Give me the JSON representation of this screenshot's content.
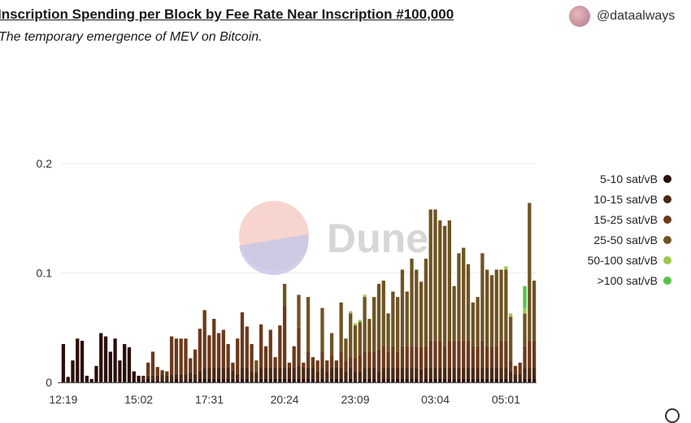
{
  "header": {
    "title": "Inscription Spending per Block by Fee Rate Near Inscription #100,000",
    "subtitle": "The temporary emergence of MEV on Bitcoin.",
    "handle": "@dataalways",
    "watermark": "Dune"
  },
  "chart_data": {
    "type": "bar",
    "stacked": true,
    "grid": "horizontal",
    "legend_position": "right",
    "ylim": [
      0,
      0.29
    ],
    "yticks": [
      0,
      0.1,
      0.2
    ],
    "ytick_labels": [
      "0",
      "0.1",
      "0.2"
    ],
    "xticks": [
      {
        "label": "12:19",
        "index": 0
      },
      {
        "label": "15:02",
        "index": 16
      },
      {
        "label": "17:31",
        "index": 31
      },
      {
        "label": "20:24",
        "index": 47
      },
      {
        "label": "23:09",
        "index": 62
      },
      {
        "label": "03:04",
        "index": 79
      },
      {
        "label": "05:01",
        "index": 94
      }
    ],
    "series": [
      {
        "name": "5-10 sat/vB",
        "color": "#2a0f0a"
      },
      {
        "name": "10-15 sat/vB",
        "color": "#4a2812"
      },
      {
        "name": "15-25 sat/vB",
        "color": "#6b3a1c"
      },
      {
        "name": "25-50 sat/vB",
        "color": "#6e5423"
      },
      {
        "name": "50-100 sat/vB",
        "color": "#9ec94a"
      },
      {
        "name": ">100 sat/vB",
        "color": "#58c04a"
      }
    ],
    "bars": [
      [
        0.035,
        0,
        0,
        0,
        0,
        0
      ],
      [
        0.005,
        0,
        0,
        0,
        0,
        0
      ],
      [
        0.02,
        0,
        0,
        0,
        0,
        0
      ],
      [
        0.04,
        0,
        0,
        0,
        0,
        0
      ],
      [
        0.038,
        0,
        0,
        0,
        0,
        0
      ],
      [
        0.006,
        0,
        0,
        0,
        0,
        0
      ],
      [
        0.003,
        0,
        0,
        0,
        0,
        0
      ],
      [
        0.015,
        0,
        0,
        0,
        0,
        0
      ],
      [
        0.045,
        0,
        0,
        0,
        0,
        0
      ],
      [
        0.042,
        0,
        0,
        0,
        0,
        0
      ],
      [
        0.028,
        0,
        0,
        0,
        0,
        0
      ],
      [
        0.04,
        0,
        0,
        0,
        0,
        0
      ],
      [
        0.02,
        0,
        0,
        0,
        0,
        0
      ],
      [
        0.035,
        0,
        0,
        0,
        0,
        0
      ],
      [
        0.032,
        0,
        0,
        0,
        0,
        0
      ],
      [
        0.01,
        0,
        0,
        0,
        0,
        0
      ],
      [
        0.006,
        0,
        0,
        0,
        0,
        0
      ],
      [
        0.002,
        0.004,
        0,
        0,
        0,
        0
      ],
      [
        0.003,
        0.003,
        0.012,
        0,
        0,
        0
      ],
      [
        0.002,
        0.004,
        0.022,
        0,
        0,
        0
      ],
      [
        0.002,
        0.004,
        0.008,
        0,
        0,
        0
      ],
      [
        0.002,
        0.005,
        0.004,
        0,
        0,
        0
      ],
      [
        0.002,
        0.004,
        0.004,
        0,
        0,
        0
      ],
      [
        0.002,
        0.005,
        0.035,
        0,
        0,
        0
      ],
      [
        0.003,
        0.005,
        0.032,
        0,
        0,
        0
      ],
      [
        0.002,
        0.006,
        0.032,
        0,
        0,
        0
      ],
      [
        0.002,
        0.006,
        0.032,
        0,
        0,
        0
      ],
      [
        0.003,
        0.006,
        0.013,
        0,
        0,
        0
      ],
      [
        0.002,
        0.006,
        0.022,
        0,
        0,
        0
      ],
      [
        0.003,
        0.008,
        0.038,
        0,
        0,
        0
      ],
      [
        0.003,
        0.01,
        0.053,
        0,
        0,
        0
      ],
      [
        0.003,
        0.01,
        0.03,
        0,
        0,
        0
      ],
      [
        0.003,
        0.01,
        0.045,
        0,
        0,
        0
      ],
      [
        0.003,
        0.01,
        0.032,
        0,
        0,
        0
      ],
      [
        0.003,
        0.01,
        0.035,
        0,
        0,
        0
      ],
      [
        0.003,
        0.01,
        0.022,
        0,
        0,
        0
      ],
      [
        0.003,
        0.008,
        0.007,
        0,
        0,
        0
      ],
      [
        0.002,
        0.006,
        0.032,
        0,
        0,
        0
      ],
      [
        0.003,
        0.01,
        0.051,
        0,
        0,
        0
      ],
      [
        0.003,
        0.01,
        0.038,
        0,
        0,
        0
      ],
      [
        0.002,
        0.008,
        0.025,
        0,
        0,
        0
      ],
      [
        0.002,
        0.007,
        0.001,
        0.01,
        0,
        0
      ],
      [
        0.003,
        0.01,
        0.04,
        0,
        0,
        0
      ],
      [
        0.003,
        0.01,
        0.02,
        0,
        0,
        0
      ],
      [
        0.003,
        0.01,
        0.035,
        0,
        0,
        0
      ],
      [
        0.003,
        0.01,
        0.01,
        0,
        0,
        0
      ],
      [
        0.003,
        0.01,
        0.039,
        0,
        0,
        0
      ],
      [
        0.003,
        0.01,
        0.057,
        0.02,
        0,
        0
      ],
      [
        0.003,
        0.01,
        0.005,
        0,
        0,
        0
      ],
      [
        0.003,
        0.01,
        0.02,
        0,
        0,
        0
      ],
      [
        0.003,
        0.012,
        0.035,
        0.03,
        0,
        0
      ],
      [
        0.003,
        0.01,
        0.005,
        0,
        0,
        0
      ],
      [
        0.003,
        0.01,
        0.015,
        0.05,
        0,
        0
      ],
      [
        0.003,
        0.01,
        0.01,
        0,
        0,
        0
      ],
      [
        0.002,
        0.008,
        0.01,
        0,
        0,
        0
      ],
      [
        0.003,
        0.01,
        0.015,
        0.04,
        0,
        0
      ],
      [
        0.002,
        0.008,
        0.01,
        0,
        0,
        0
      ],
      [
        0.003,
        0.01,
        0.012,
        0.02,
        0,
        0
      ],
      [
        0.003,
        0.01,
        0.007,
        0,
        0,
        0
      ],
      [
        0.003,
        0.01,
        0.015,
        0.045,
        0,
        0
      ],
      [
        0.002,
        0.008,
        0.01,
        0.02,
        0,
        0
      ],
      [
        0.003,
        0.01,
        0.01,
        0.04,
        0.002,
        0
      ],
      [
        0.002,
        0.008,
        0.012,
        0.03,
        0.002,
        0
      ],
      [
        0.002,
        0.008,
        0.015,
        0.03,
        0.002,
        0
      ],
      [
        0.003,
        0.01,
        0.015,
        0.05,
        0.002,
        0
      ],
      [
        0.003,
        0.01,
        0.015,
        0.03,
        0,
        0
      ],
      [
        0.003,
        0.01,
        0.015,
        0.05,
        0,
        0
      ],
      [
        0.002,
        0.008,
        0.02,
        0.06,
        0,
        0
      ],
      [
        0.003,
        0.01,
        0.02,
        0.06,
        0,
        0
      ],
      [
        0.003,
        0.01,
        0.015,
        0.035,
        0,
        0
      ],
      [
        0.003,
        0.01,
        0.02,
        0.05,
        0,
        0
      ],
      [
        0.003,
        0.01,
        0.015,
        0.05,
        0,
        0
      ],
      [
        0.003,
        0.01,
        0.02,
        0.07,
        0,
        0
      ],
      [
        0.003,
        0.01,
        0.02,
        0.05,
        0,
        0
      ],
      [
        0.003,
        0.01,
        0.02,
        0.08,
        0,
        0
      ],
      [
        0.003,
        0.01,
        0.02,
        0.07,
        0,
        0
      ],
      [
        0.002,
        0.01,
        0.02,
        0.06,
        0,
        0
      ],
      [
        0.003,
        0.01,
        0.02,
        0.08,
        0,
        0
      ],
      [
        0.003,
        0.01,
        0.025,
        0.12,
        0,
        0
      ],
      [
        0.003,
        0.01,
        0.025,
        0.12,
        0,
        0
      ],
      [
        0.003,
        0.01,
        0.025,
        0.11,
        0,
        0
      ],
      [
        0.003,
        0.01,
        0.02,
        0.11,
        0,
        0
      ],
      [
        0.003,
        0.01,
        0.025,
        0.11,
        0,
        0
      ],
      [
        0.003,
        0.01,
        0.025,
        0.05,
        0,
        0
      ],
      [
        0.003,
        0.01,
        0.025,
        0.08,
        0,
        0
      ],
      [
        0.003,
        0.01,
        0.025,
        0.085,
        0,
        0
      ],
      [
        0.003,
        0.01,
        0.025,
        0.07,
        0,
        0
      ],
      [
        0.003,
        0.01,
        0.02,
        0.04,
        0,
        0
      ],
      [
        0.003,
        0.01,
        0.02,
        0.045,
        0,
        0
      ],
      [
        0.003,
        0.01,
        0.025,
        0.08,
        0,
        0
      ],
      [
        0.003,
        0.01,
        0.02,
        0.07,
        0,
        0
      ],
      [
        0.003,
        0.01,
        0.02,
        0.065,
        0,
        0
      ],
      [
        0.003,
        0.01,
        0.02,
        0.07,
        0,
        0
      ],
      [
        0.003,
        0.01,
        0.025,
        0.065,
        0,
        0
      ],
      [
        0.003,
        0.01,
        0.025,
        0.065,
        0.003,
        0
      ],
      [
        0.002,
        0.008,
        0.01,
        0.04,
        0.003,
        0
      ],
      [
        0.002,
        0.006,
        0.007,
        0,
        0,
        0
      ],
      [
        0.002,
        0.006,
        0.01,
        0,
        0,
        0
      ],
      [
        0.003,
        0.01,
        0.02,
        0.03,
        0.005,
        0.02
      ],
      [
        0.003,
        0.01,
        0.025,
        0.126,
        0,
        0
      ],
      [
        0.003,
        0.01,
        0.025,
        0.055,
        0,
        0
      ]
    ]
  }
}
